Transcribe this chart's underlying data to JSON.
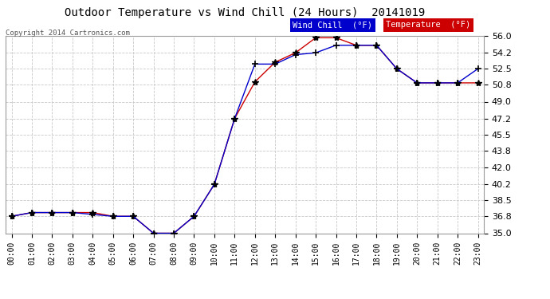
{
  "title": "Outdoor Temperature vs Wind Chill (24 Hours)  20141019",
  "copyright": "Copyright 2014 Cartronics.com",
  "background_color": "#ffffff",
  "plot_bg_color": "#ffffff",
  "grid_color": "#c8c8c8",
  "hours": [
    0,
    1,
    2,
    3,
    4,
    5,
    6,
    7,
    8,
    9,
    10,
    11,
    12,
    13,
    14,
    15,
    16,
    17,
    18,
    19,
    20,
    21,
    22,
    23
  ],
  "temperature": [
    36.8,
    37.2,
    37.2,
    37.2,
    37.2,
    36.8,
    36.8,
    35.0,
    35.0,
    36.8,
    40.2,
    47.2,
    51.1,
    53.2,
    54.2,
    55.8,
    55.8,
    55.0,
    55.0,
    52.5,
    51.0,
    51.0,
    51.0,
    51.0
  ],
  "wind_chill": [
    36.8,
    37.2,
    37.2,
    37.2,
    37.0,
    36.8,
    36.8,
    35.0,
    35.0,
    36.8,
    40.2,
    47.2,
    53.0,
    53.0,
    54.0,
    54.2,
    55.0,
    55.0,
    55.0,
    52.5,
    51.0,
    51.0,
    51.0,
    52.5
  ],
  "temp_color": "#cc0000",
  "wind_chill_color": "#0000cc",
  "marker_color": "#000000",
  "ylim": [
    35.0,
    56.0
  ],
  "yticks": [
    35.0,
    36.8,
    38.5,
    40.2,
    42.0,
    43.8,
    45.5,
    47.2,
    49.0,
    50.8,
    52.5,
    54.2,
    56.0
  ],
  "legend_wind_bg": "#0000cc",
  "legend_temp_bg": "#cc0000",
  "legend_wind_text": "Wind Chill  (°F)",
  "legend_temp_text": "Temperature  (°F)"
}
